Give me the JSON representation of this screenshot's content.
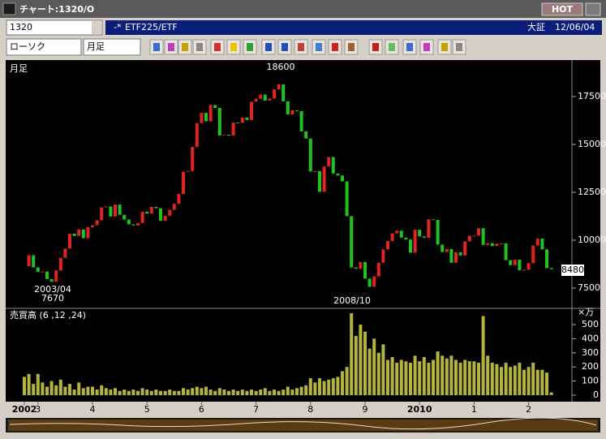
{
  "window": {
    "title": "チャート:1320/O",
    "hot": "HOT",
    "code": "1320",
    "name": "ETF225/ETF",
    "market": "大証",
    "date": "12/06/04",
    "chart_style": "ローソク",
    "period": "月足"
  },
  "chart_data": [
    {
      "type": "candlestick",
      "title": "月足",
      "values": [
        8640,
        9215,
        8579,
        8340,
        8363,
        7973,
        7831,
        8425,
        9083,
        9563,
        10344,
        10219,
        10560,
        10101,
        10677,
        10784,
        11042,
        11715,
        11762,
        11236,
        11859,
        11326,
        11082,
        10824,
        10771,
        10899,
        11489,
        11388,
        11741,
        11668,
        11009,
        11277,
        11584,
        11900,
        12414,
        13574,
        13607,
        14872,
        16111,
        16650,
        16205,
        17060,
        16906,
        15467,
        15505,
        15457,
        16141,
        16128,
        16399,
        16274,
        17226,
        17383,
        17604,
        17288,
        17400,
        17876,
        18138,
        17249,
        16569,
        16786,
        16737,
        15681,
        15308,
        13592,
        13603,
        12526,
        13850,
        14339,
        13481,
        13377,
        13073,
        11260,
        8577,
        8512,
        8860,
        7994,
        7568,
        8110,
        8828,
        9523,
        9958,
        10357,
        10493,
        10133,
        10035,
        9346,
        10546,
        10198,
        10126,
        11090,
        11057,
        9769,
        9383,
        9537,
        8824,
        9369,
        9202,
        9937,
        10229,
        10238,
        10624,
        9755,
        9850,
        9694,
        9816,
        9833,
        8955,
        8700,
        8988,
        8434,
        8455,
        8803,
        9723,
        10084,
        9521,
        8543,
        8480
      ],
      "up_color": "#e0241e",
      "down_color": "#1fc41f",
      "ylim": [
        6500,
        19250
      ],
      "yticks": [
        7500,
        10000,
        12500,
        15000,
        17500
      ],
      "annotations": [
        "18600",
        "2003/04",
        "7670",
        "2008/10"
      ]
    },
    {
      "type": "bar",
      "title": "売買高 (6 ,12 ,24)",
      "y_unit": "×万",
      "categories": [
        "2002",
        null,
        null,
        "3",
        null,
        null,
        null,
        null,
        null,
        null,
        null,
        null,
        null,
        null,
        null,
        "4",
        null,
        null,
        null,
        null,
        null,
        null,
        null,
        null,
        null,
        null,
        null,
        "5",
        null,
        null,
        null,
        null,
        null,
        null,
        null,
        null,
        null,
        null,
        null,
        "6",
        null,
        null,
        null,
        null,
        null,
        null,
        null,
        null,
        null,
        null,
        null,
        "7",
        null,
        null,
        null,
        null,
        null,
        null,
        null,
        null,
        null,
        null,
        null,
        "8",
        null,
        null,
        null,
        null,
        null,
        null,
        null,
        null,
        null,
        null,
        null,
        "9",
        null,
        null,
        null,
        null,
        null,
        null,
        null,
        null,
        null,
        null,
        null,
        "2010",
        null,
        null,
        null,
        null,
        null,
        null,
        null,
        null,
        null,
        null,
        null,
        "1",
        null,
        null,
        null,
        null,
        null,
        null,
        null,
        null,
        null,
        null,
        null,
        "2",
        null,
        null,
        null,
        null,
        null
      ],
      "values": [
        130,
        150,
        80,
        150,
        90,
        60,
        100,
        70,
        110,
        60,
        80,
        40,
        90,
        50,
        60,
        60,
        40,
        70,
        50,
        40,
        50,
        30,
        40,
        30,
        40,
        30,
        50,
        40,
        30,
        40,
        30,
        30,
        40,
        30,
        30,
        50,
        40,
        50,
        60,
        50,
        60,
        40,
        30,
        50,
        40,
        30,
        40,
        30,
        40,
        30,
        40,
        30,
        40,
        50,
        30,
        40,
        30,
        40,
        60,
        40,
        50,
        60,
        70,
        120,
        90,
        120,
        100,
        110,
        120,
        130,
        170,
        200,
        580,
        420,
        500,
        450,
        330,
        400,
        300,
        360,
        250,
        270,
        230,
        250,
        240,
        230,
        280,
        240,
        270,
        230,
        250,
        310,
        280,
        260,
        280,
        250,
        230,
        250,
        240,
        240,
        230,
        560,
        280,
        230,
        220,
        200,
        230,
        200,
        210,
        230,
        180,
        200,
        230,
        180,
        180,
        160,
        20
      ],
      "color": "#b4b43c",
      "ylim": [
        0,
        600
      ],
      "yticks": [
        0,
        100,
        200,
        300,
        400,
        500
      ]
    }
  ]
}
